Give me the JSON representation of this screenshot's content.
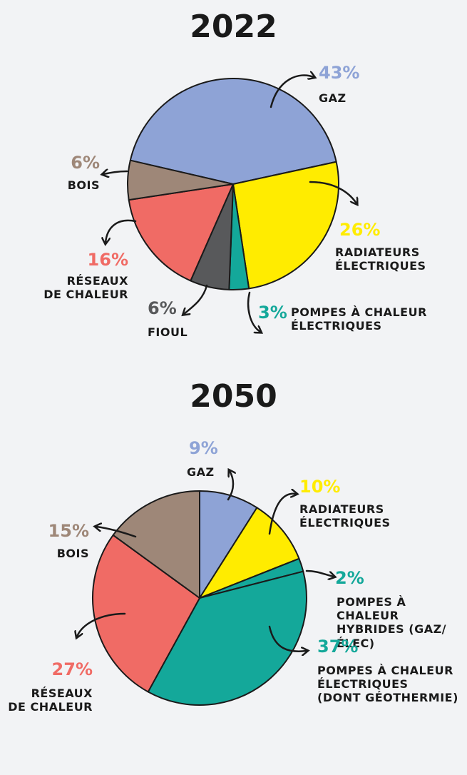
{
  "chart_data": [
    {
      "type": "pie",
      "title": "2022",
      "categories": [
        "GAZ",
        "RADIATEURS\nÉLECTRIQUES",
        "POMPES À CHALEUR\nÉLECTRIQUES",
        "FIOUL",
        "RÉSEAUX\nDE CHALEUR",
        "BOIS"
      ],
      "values": [
        43,
        26,
        3,
        6,
        16,
        6
      ],
      "value_labels": [
        "43%",
        "26%",
        "3%",
        "6%",
        "16%",
        "6%"
      ],
      "colors": [
        "#8ea3d6",
        "#ffec00",
        "#14a89a",
        "#58595b",
        "#f06b65",
        "#9e8778"
      ]
    },
    {
      "type": "pie",
      "title": "2050",
      "categories": [
        "GAZ",
        "RADIATEURS\nÉLECTRIQUES",
        "POMPES À CHALEUR\nHYBRIDES (GAZ/ÉLEC)",
        "POMPES À CHALEUR\nÉLECTRIQUES\n(DONT GÉOTHERMIE)",
        "RÉSEAUX\nDE CHALEUR",
        "BOIS"
      ],
      "values": [
        9,
        10,
        2,
        37,
        27,
        15
      ],
      "value_labels": [
        "9%",
        "10%",
        "2%",
        "37%",
        "27%",
        "15%"
      ],
      "colors": [
        "#8ea3d6",
        "#ffec00",
        "#14a89a",
        "#14a89a",
        "#f06b65",
        "#9e8778"
      ]
    }
  ]
}
